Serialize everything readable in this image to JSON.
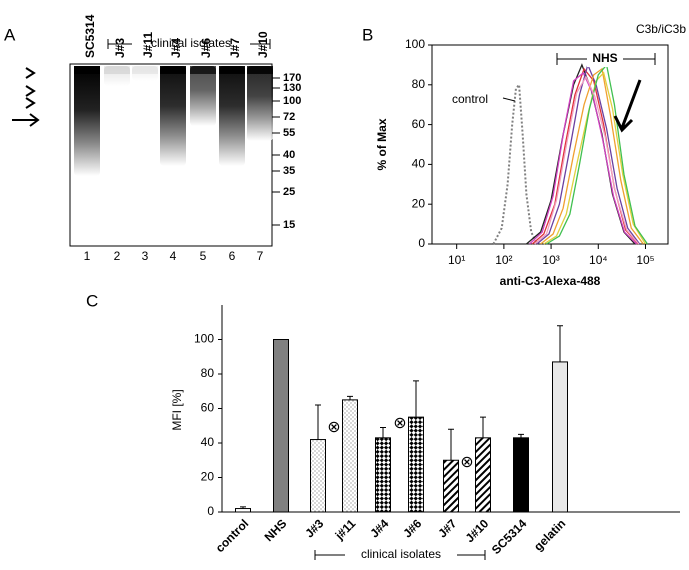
{
  "blot": {
    "letter": "A",
    "lanes": [
      "SC5314",
      "J#3",
      "J#11",
      "J#4",
      "J#6",
      "J#7",
      "J#10"
    ],
    "group": "clinical isolates",
    "markers": [
      "170",
      "130",
      "100",
      "72",
      "55",
      "40",
      "35",
      "25",
      "15"
    ],
    "lane_numbers": [
      "1",
      "2",
      "3",
      "4",
      "5",
      "6",
      "7"
    ]
  },
  "chart_data": [
    {
      "type": "line",
      "letter": "B",
      "xlabel": "anti-C3-Alexa-488",
      "ylabel": "% of Max",
      "log_x": true,
      "xlim": [
        3,
        300000
      ],
      "xticks": [
        {
          "value": 10,
          "label": "10¹"
        },
        {
          "value": 100,
          "label": "10²"
        },
        {
          "value": 1000,
          "label": "10³"
        },
        {
          "value": 10000,
          "label": "10⁴"
        },
        {
          "value": 100000,
          "label": "10⁵"
        }
      ],
      "ylim": [
        0,
        100
      ],
      "yticks": [
        0,
        20,
        40,
        60,
        80,
        100
      ],
      "annotations": [
        "control",
        "NHS",
        "C3b/iC3b"
      ],
      "series": [
        {
          "name": "control",
          "color": "#808080",
          "dash": true,
          "x": [
            60,
            90,
            120,
            150,
            180,
            210,
            250,
            300,
            380,
            500
          ],
          "values": [
            0,
            8,
            30,
            60,
            78,
            80,
            55,
            25,
            6,
            0
          ]
        },
        {
          "name": "black",
          "color": "#222222",
          "x": [
            300,
            600,
            1000,
            1800,
            3000,
            4500,
            7000,
            12000,
            20000,
            35000,
            60000
          ],
          "values": [
            0,
            6,
            22,
            55,
            80,
            90,
            78,
            55,
            25,
            6,
            0
          ]
        },
        {
          "name": "red",
          "color": "#e0303a",
          "x": [
            400,
            700,
            1200,
            2000,
            3200,
            5000,
            8000,
            13000,
            22000,
            38000,
            70000
          ],
          "values": [
            0,
            5,
            20,
            50,
            75,
            88,
            82,
            60,
            28,
            7,
            0
          ]
        },
        {
          "name": "magenta",
          "color": "#d040c0",
          "x": [
            350,
            650,
            1100,
            1900,
            3000,
            4800,
            7500,
            12500,
            21000,
            36000,
            65000
          ],
          "values": [
            0,
            6,
            24,
            58,
            82,
            86,
            76,
            52,
            24,
            6,
            0
          ]
        },
        {
          "name": "purple",
          "color": "#6a3fa0",
          "x": [
            500,
            900,
            1500,
            2500,
            4000,
            6000,
            9000,
            15000,
            25000,
            42000,
            75000
          ],
          "values": [
            0,
            5,
            20,
            48,
            75,
            90,
            80,
            58,
            28,
            8,
            0
          ]
        },
        {
          "name": "orange",
          "color": "#f0a030",
          "x": [
            600,
            1100,
            1800,
            3000,
            5000,
            8000,
            12000,
            18000,
            30000,
            50000,
            90000
          ],
          "values": [
            0,
            5,
            18,
            45,
            70,
            85,
            88,
            65,
            32,
            8,
            0
          ]
        },
        {
          "name": "yellow",
          "color": "#e0d040",
          "x": [
            700,
            1300,
            2100,
            3500,
            6000,
            9000,
            13000,
            20000,
            33000,
            55000,
            100000
          ],
          "values": [
            0,
            4,
            15,
            40,
            65,
            82,
            86,
            68,
            35,
            10,
            0
          ]
        },
        {
          "name": "green",
          "color": "#40c050",
          "x": [
            800,
            1500,
            2500,
            4000,
            6500,
            10000,
            15000,
            22000,
            35000,
            60000,
            110000
          ],
          "values": [
            0,
            4,
            15,
            40,
            68,
            85,
            90,
            70,
            35,
            9,
            0
          ]
        },
        {
          "name": "pink",
          "color": "#f0a0c0",
          "x": [
            450,
            800,
            1300,
            2200,
            3500,
            5500,
            8500,
            14000,
            23000,
            40000,
            72000
          ],
          "values": [
            0,
            5,
            22,
            52,
            76,
            84,
            74,
            54,
            26,
            7,
            0
          ]
        }
      ]
    },
    {
      "type": "bar",
      "letter": "C",
      "ylabel": "MFI [%]",
      "ylim": [
        0,
        120
      ],
      "yticks": [
        0,
        20,
        40,
        60,
        80,
        100
      ],
      "categories": [
        "control",
        "NHS",
        "J#3",
        "j#11",
        "J#4",
        "J#6",
        "J#7",
        "J#10",
        "SC5314",
        "gelatin"
      ],
      "values": [
        2,
        100,
        42,
        65,
        43,
        55,
        30,
        43,
        43,
        87
      ],
      "errors": [
        1,
        0,
        20,
        2,
        6,
        21,
        18,
        12,
        2,
        21
      ],
      "colors": [
        "#ffffff",
        "#808080",
        "#ffffff",
        "#ffffff",
        "#ffffff",
        "#ffffff",
        "#ffffff",
        "#ffffff",
        "#000000",
        "#e8e8e8"
      ],
      "patterns": [
        "none",
        "none",
        "dots",
        "dots",
        "checker",
        "checker",
        "hatch",
        "hatch",
        "none",
        "none"
      ],
      "annotations": [
        "⊗",
        "⊗",
        "⊗",
        "clinical isolates"
      ]
    }
  ]
}
